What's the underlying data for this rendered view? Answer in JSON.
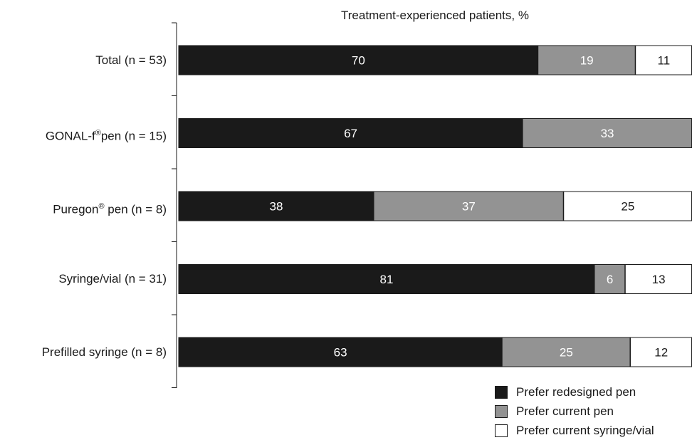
{
  "chart_data": {
    "type": "bar",
    "orientation": "horizontal",
    "stacked": true,
    "title": "Treatment-experienced patients, %",
    "categories": [
      {
        "name": "Total (n = 53)",
        "base": "Total (n = 53)",
        "sup": "",
        "rest": ""
      },
      {
        "name": "GONAL-f® pen (n = 15)",
        "base": "GONAL-f",
        "sup": "®",
        "rest": "pen (n = 15)"
      },
      {
        "name": "Puregon® pen (n = 8)",
        "base": "Puregon",
        "sup": "®",
        "rest": " pen (n = 8)"
      },
      {
        "name": "Syringe/vial (n = 31)",
        "base": "Syringe/vial (n = 31)",
        "sup": "",
        "rest": ""
      },
      {
        "name": "Prefilled syringe (n = 8)",
        "base": "Prefilled syringe (n = 8)",
        "sup": "",
        "rest": ""
      }
    ],
    "series": [
      {
        "name": "Prefer redesigned pen",
        "color": "#1a1a1a",
        "label_color": "#ffffff",
        "values": [
          70,
          67,
          38,
          81,
          63
        ]
      },
      {
        "name": "Prefer current pen",
        "color": "#939393",
        "label_color": "#ffffff",
        "values": [
          19,
          33,
          37,
          6,
          25
        ]
      },
      {
        "name": "Prefer current syringe/vial",
        "color": "#ffffff",
        "label_color": "#1a1a1a",
        "values": [
          11,
          0,
          25,
          13,
          12
        ]
      }
    ],
    "xlim": [
      0,
      100
    ],
    "grid": false,
    "legend_position": "bottom-right"
  }
}
